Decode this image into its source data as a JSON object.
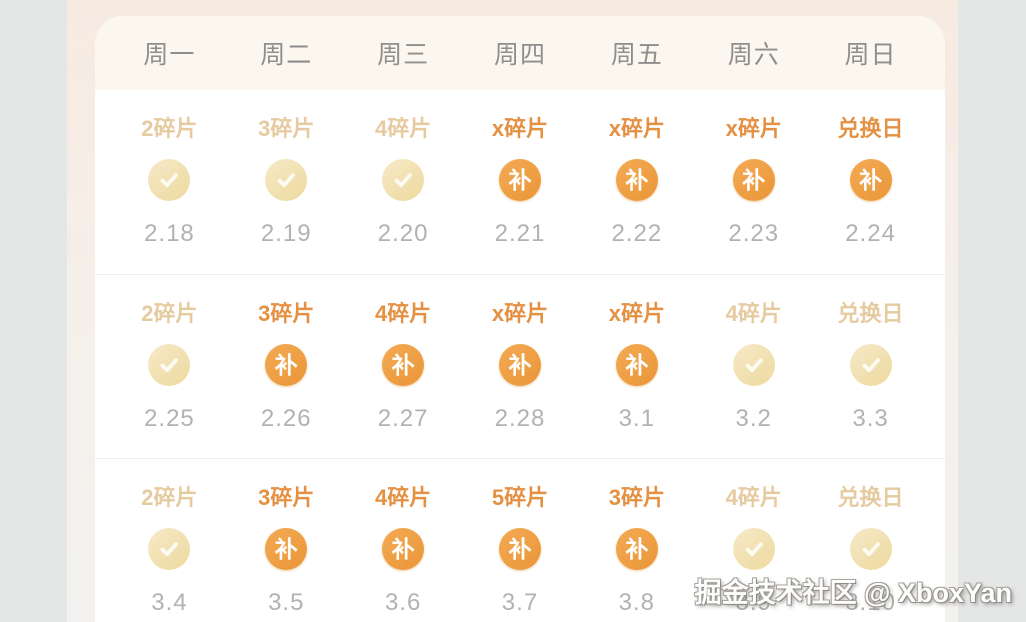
{
  "weekday_header": [
    "周一",
    "周二",
    "周三",
    "周四",
    "周五",
    "周六",
    "周日"
  ],
  "badge": {
    "makeup_char": "补"
  },
  "weeks": [
    {
      "cells": [
        {
          "label": "2碎片",
          "state": "done",
          "date": "2.18"
        },
        {
          "label": "3碎片",
          "state": "done",
          "date": "2.19"
        },
        {
          "label": "4碎片",
          "state": "done",
          "date": "2.20"
        },
        {
          "label": "x碎片",
          "state": "makeup",
          "date": "2.21"
        },
        {
          "label": "x碎片",
          "state": "makeup",
          "date": "2.22"
        },
        {
          "label": "x碎片",
          "state": "makeup",
          "date": "2.23"
        },
        {
          "label": "兑换日",
          "state": "makeup",
          "date": "2.24"
        }
      ]
    },
    {
      "cells": [
        {
          "label": "2碎片",
          "state": "done",
          "date": "2.25"
        },
        {
          "label": "3碎片",
          "state": "makeup",
          "date": "2.26"
        },
        {
          "label": "4碎片",
          "state": "makeup",
          "date": "2.27"
        },
        {
          "label": "x碎片",
          "state": "makeup",
          "date": "2.28"
        },
        {
          "label": "x碎片",
          "state": "makeup",
          "date": "3.1"
        },
        {
          "label": "4碎片",
          "state": "done",
          "date": "3.2"
        },
        {
          "label": "兑换日",
          "state": "done",
          "date": "3.3"
        }
      ]
    },
    {
      "cells": [
        {
          "label": "2碎片",
          "state": "done",
          "date": "3.4"
        },
        {
          "label": "3碎片",
          "state": "makeup",
          "date": "3.5"
        },
        {
          "label": "4碎片",
          "state": "makeup",
          "date": "3.6"
        },
        {
          "label": "5碎片",
          "state": "makeup",
          "date": "3.7"
        },
        {
          "label": "3碎片",
          "state": "makeup",
          "date": "3.8"
        },
        {
          "label": "4碎片",
          "state": "done",
          "date": "3.9"
        },
        {
          "label": "兑换日",
          "state": "done",
          "date": "3.10"
        }
      ]
    }
  ],
  "watermark": "掘金技术社区 @ XboxYan",
  "colors": {
    "header_cream": "#fcf7ee",
    "weekday_gray": "#8e8e8e",
    "label_orange": "#e49144",
    "label_done_tan": "#e6cba0",
    "makeup_orange": "#ec9a3e",
    "check_circle_cream": "#f0dfae",
    "date_gray": "#b2b2b2"
  }
}
